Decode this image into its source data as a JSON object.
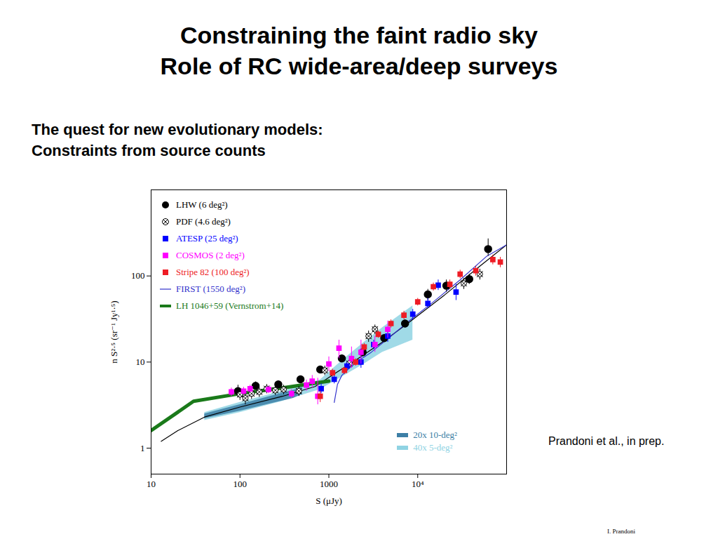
{
  "chart_data": {
    "type": "scatter",
    "title": "Constraining the faint radio sky",
    "subtitle": "Role of RC wide-area/deep surveys",
    "annotations": [
      "The quest for new evolutionary models:",
      "Constraints from source counts",
      "Prandoni et al., in prep.",
      "I. Prandoni"
    ],
    "x_label": "S (μJy)",
    "y_label": "n S²·⁵ (sr⁻¹ Jy¹·⁵)",
    "log": true,
    "legend": "top-left",
    "xlim": [
      10,
      100000
    ],
    "xticks": [
      10,
      100,
      1000,
      {
        "value": 10000,
        "label": "10⁴"
      }
    ],
    "ylim": [
      0.5,
      1000
    ],
    "yticks": [
      1,
      10,
      100
    ],
    "series": [
      {
        "name": "40x 5-deg²",
        "type": "band",
        "color": "#8fd3e3",
        "x": [
          40,
          100,
          300,
          800,
          1500,
          2500,
          4000,
          8800
        ],
        "y_lo": [
          2.1,
          2.6,
          3.5,
          4.8,
          7,
          9.5,
          13,
          18
        ],
        "y_hi": [
          2.6,
          3.4,
          4.6,
          6.2,
          11,
          17,
          25,
          45
        ]
      },
      {
        "name": "20x 10-deg²",
        "type": "band",
        "color": "#3d7fa6",
        "x": [
          40,
          100,
          200,
          400,
          500
        ],
        "y_lo": [
          2.2,
          2.7,
          3.2,
          3.8,
          4.2
        ],
        "y_hi": [
          2.5,
          3.2,
          3.9,
          4.7,
          5.1
        ]
      },
      {
        "type": "line",
        "color": "#000000",
        "line_style": "solid",
        "x": [
          13,
          20,
          40,
          100,
          300,
          700,
          1200,
          2000,
          4000,
          8000,
          20000,
          50000,
          100000
        ],
        "values": [
          1.2,
          1.6,
          2.3,
          3.0,
          4.0,
          5.2,
          7.5,
          10.5,
          17,
          29,
          60,
          130,
          230
        ]
      },
      {
        "name": "LHW (6 deg²)",
        "type": "scatter",
        "color": "#000000",
        "marker": "circle",
        "x": [
          95,
          150,
          270,
          480,
          800,
          1400,
          2400,
          4200,
          7200,
          13000,
          21000,
          38000,
          62000
        ],
        "values": [
          4.6,
          5.3,
          5.5,
          6.3,
          8.2,
          11,
          13,
          19,
          28,
          61,
          77,
          92,
          205
        ],
        "y_lo": [
          3.9,
          4.8,
          5.0,
          5.8,
          7.5,
          10,
          12,
          17,
          25,
          52,
          65,
          80,
          170
        ],
        "y_hi": [
          5.4,
          5.9,
          6.0,
          6.8,
          9.0,
          12,
          14.5,
          21,
          31,
          70,
          90,
          105,
          270
        ]
      },
      {
        "name": "PDF (4.6 deg²)",
        "type": "scatter",
        "color": "#000000",
        "marker": "circle-cross",
        "x": [
          100,
          115,
          135,
          165,
          200,
          250,
          310,
          460,
          900,
          1700,
          2800,
          3300,
          33000,
          50000
        ],
        "values": [
          4.2,
          3.8,
          4.3,
          4.5,
          4.9,
          4.7,
          4.8,
          4.6,
          8.0,
          9.6,
          20,
          24,
          82,
          105
        ],
        "y_lo": [
          3.6,
          3.2,
          3.7,
          3.9,
          4.3,
          4.1,
          4.2,
          4.0,
          7.0,
          8.4,
          17,
          21,
          70,
          90
        ],
        "y_hi": [
          4.8,
          4.4,
          4.9,
          5.1,
          5.5,
          5.3,
          5.4,
          5.2,
          9.0,
          10.8,
          23,
          27,
          94,
          120
        ]
      },
      {
        "name": "ATESP (25 deg²)",
        "type": "scatter",
        "color": "#0000ff",
        "marker": "square",
        "x": [
          820,
          1150,
          1600,
          2300,
          3200,
          4600,
          8800,
          13000,
          17000,
          27000
        ],
        "values": [
          4.9,
          6.3,
          9.0,
          10,
          16,
          20,
          36,
          48,
          78,
          65
        ],
        "y_lo": [
          4.3,
          5.6,
          8.0,
          8.5,
          14,
          17,
          31,
          42,
          68,
          52
        ],
        "y_hi": [
          5.6,
          7.0,
          10,
          11.5,
          18,
          23,
          41,
          55,
          90,
          80
        ]
      },
      {
        "name": "COSMOS (2 deg²)",
        "type": "scatter",
        "color": "#ff00ff",
        "marker": "square",
        "x": [
          80,
          110,
          130,
          210,
          380,
          560,
          650,
          750,
          1000,
          1300,
          1800,
          2300,
          3300,
          4600
        ],
        "values": [
          4.5,
          4.6,
          4.9,
          4.8,
          4.3,
          5.4,
          6.0,
          4.0,
          9.5,
          14.5,
          11,
          13,
          16,
          24
        ],
        "y_lo": [
          4.0,
          4.1,
          4.4,
          4.3,
          3.8,
          4.6,
          5.0,
          3.2,
          7.8,
          11,
          8.5,
          9.5,
          13,
          19
        ],
        "y_hi": [
          5.0,
          5.1,
          5.4,
          5.3,
          4.8,
          6.2,
          7.0,
          6.5,
          11.5,
          18,
          15,
          18,
          20,
          30
        ]
      },
      {
        "name": "Stripe 82 (100 deg²)",
        "type": "scatter",
        "color": "#ee1c25",
        "marker": "square",
        "x": [
          800,
          1100,
          1500,
          2000,
          2500,
          3600,
          5000,
          7000,
          10000,
          15000,
          23000,
          30000,
          45000,
          70000,
          85000
        ],
        "values": [
          4.0,
          7.5,
          8.0,
          10,
          15,
          21,
          28,
          35,
          50,
          75,
          80,
          105,
          115,
          155,
          145
        ],
        "y_lo": [
          3.4,
          6.7,
          7.2,
          9.0,
          13.5,
          19,
          25,
          31,
          45,
          67,
          70,
          93,
          100,
          135,
          125
        ],
        "y_hi": [
          4.6,
          8.3,
          8.8,
          11,
          16.5,
          23,
          31,
          39,
          55,
          83,
          90,
          117,
          130,
          175,
          165
        ]
      },
      {
        "name": "FIRST (1550 deg²)",
        "type": "line",
        "color": "#3333cc",
        "line_style": "solid",
        "x": [
          1150,
          1250,
          1400,
          1700,
          2200,
          3000,
          5000,
          8000,
          15000,
          30000,
          60000,
          100000
        ],
        "values": [
          3.4,
          5.5,
          7.0,
          8.5,
          10.5,
          13,
          20,
          30,
          50,
          90,
          170,
          230
        ]
      },
      {
        "name": "LH 1046+59 (Vernstrom+14)",
        "type": "line",
        "color": "#1a7a1a",
        "line_style": "thick",
        "x": [
          10,
          30,
          100,
          300,
          1000
        ],
        "values": [
          1.6,
          3.5,
          4.3,
          5.0,
          6.0
        ]
      }
    ]
  }
}
